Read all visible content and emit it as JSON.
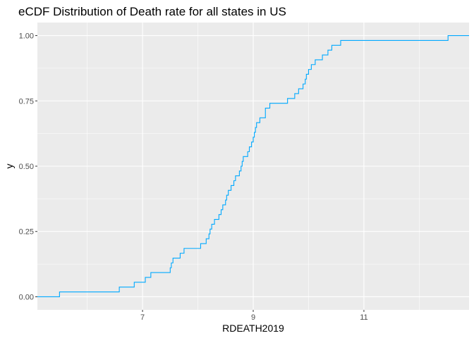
{
  "chart_data": {
    "type": "line",
    "step": true,
    "title": "eCDF Distribution of Death rate for all states in US",
    "xlabel": "RDEATH2019",
    "ylabel": "y",
    "xlim": [
      5.1,
      12.9
    ],
    "ylim": [
      -0.05,
      1.05
    ],
    "x_ticks": [
      7,
      9,
      11
    ],
    "x_tick_labels": [
      "7",
      "9",
      "11"
    ],
    "y_ticks": [
      0,
      0.25,
      0.5,
      0.75,
      1
    ],
    "y_tick_labels": [
      "0.00",
      "0.25",
      "0.50",
      "0.75",
      "1.00"
    ],
    "grid": true,
    "legend": "none",
    "line_color": "#00A9FF",
    "panel_color": "#EBEBEB",
    "series": [
      {
        "x": [
          5.5,
          6.58,
          6.85,
          7.05,
          7.15,
          7.5,
          7.52,
          7.55,
          7.68,
          7.75,
          8.05,
          8.15,
          8.2,
          8.22,
          8.25,
          8.3,
          8.38,
          8.42,
          8.45,
          8.5,
          8.52,
          8.55,
          8.6,
          8.65,
          8.68,
          8.75,
          8.78,
          8.8,
          8.82,
          8.9,
          8.93,
          8.97,
          9.0,
          9.02,
          9.04,
          9.06,
          9.12,
          9.22,
          9.3,
          9.62,
          9.75,
          9.82,
          9.9,
          9.94,
          9.96,
          10.0,
          10.05,
          10.12,
          10.25,
          10.35,
          10.42,
          10.58,
          10.68,
          11.02,
          12.52
        ],
        "y": [
          0.0185,
          0.037,
          0.0556,
          0.0741,
          0.0926,
          0.1111,
          0.1296,
          0.1481,
          0.1667,
          0.1852,
          0.2037,
          0.2222,
          0.2407,
          0.2593,
          0.2778,
          0.2963,
          0.3148,
          0.3333,
          0.3519,
          0.3704,
          0.3889,
          0.4074,
          0.4259,
          0.4444,
          0.463,
          0.4815,
          0.5,
          0.5185,
          0.537,
          0.5556,
          0.5741,
          0.5926,
          0.6111,
          0.6296,
          0.6481,
          0.6667,
          0.6852,
          0.7222,
          0.7407,
          0.7593,
          0.7778,
          0.7963,
          0.8148,
          0.8333,
          0.8519,
          0.8704,
          0.8889,
          0.9074,
          0.9259,
          0.9444,
          0.963,
          0.9815,
          0.9815,
          0.9815,
          1.0
        ]
      }
    ]
  }
}
